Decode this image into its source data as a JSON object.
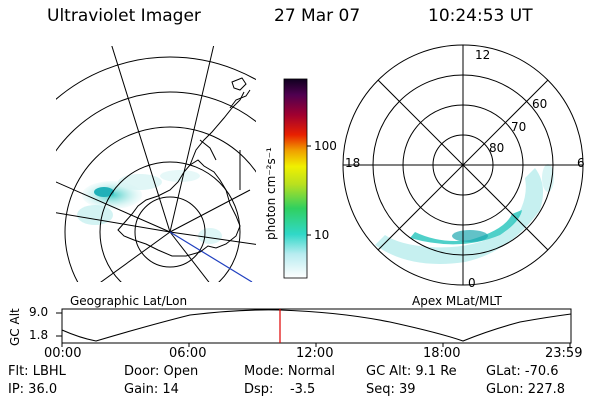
{
  "header": {
    "instrument": "Ultraviolet Imager",
    "date": "27 Mar 07",
    "time": "10:24:53 UT"
  },
  "colorbar": {
    "unit_label": "photon cm⁻²s⁻¹",
    "ticks": [
      "100",
      "10"
    ]
  },
  "left_map": {
    "caption": "Geographic Lat/Lon"
  },
  "right_map": {
    "caption": "Apex MLat/MLT",
    "mlt_labels": {
      "top": "12",
      "left": "18",
      "right": "6",
      "bottom": "0"
    },
    "lat_labels": [
      "60",
      "70",
      "80"
    ]
  },
  "timeline": {
    "y_label": "GC Alt",
    "y_ticks": [
      "9.0",
      "1.8"
    ],
    "x_ticks": [
      "00:00",
      "06:00",
      "12:00",
      "18:00",
      "23:59"
    ]
  },
  "info": {
    "flt": "Flt: LBHL",
    "ip": "IP: 36.0",
    "door": "Door: Open",
    "gain": "Gain: 14",
    "mode": "Mode: Normal",
    "dsp": "Dsp:    -3.5",
    "gcalt": "GC Alt: 9.1 Re",
    "seq": "Seq: 39",
    "glat": "GLat: -70.6",
    "glon": "GLon: 227.8"
  }
}
